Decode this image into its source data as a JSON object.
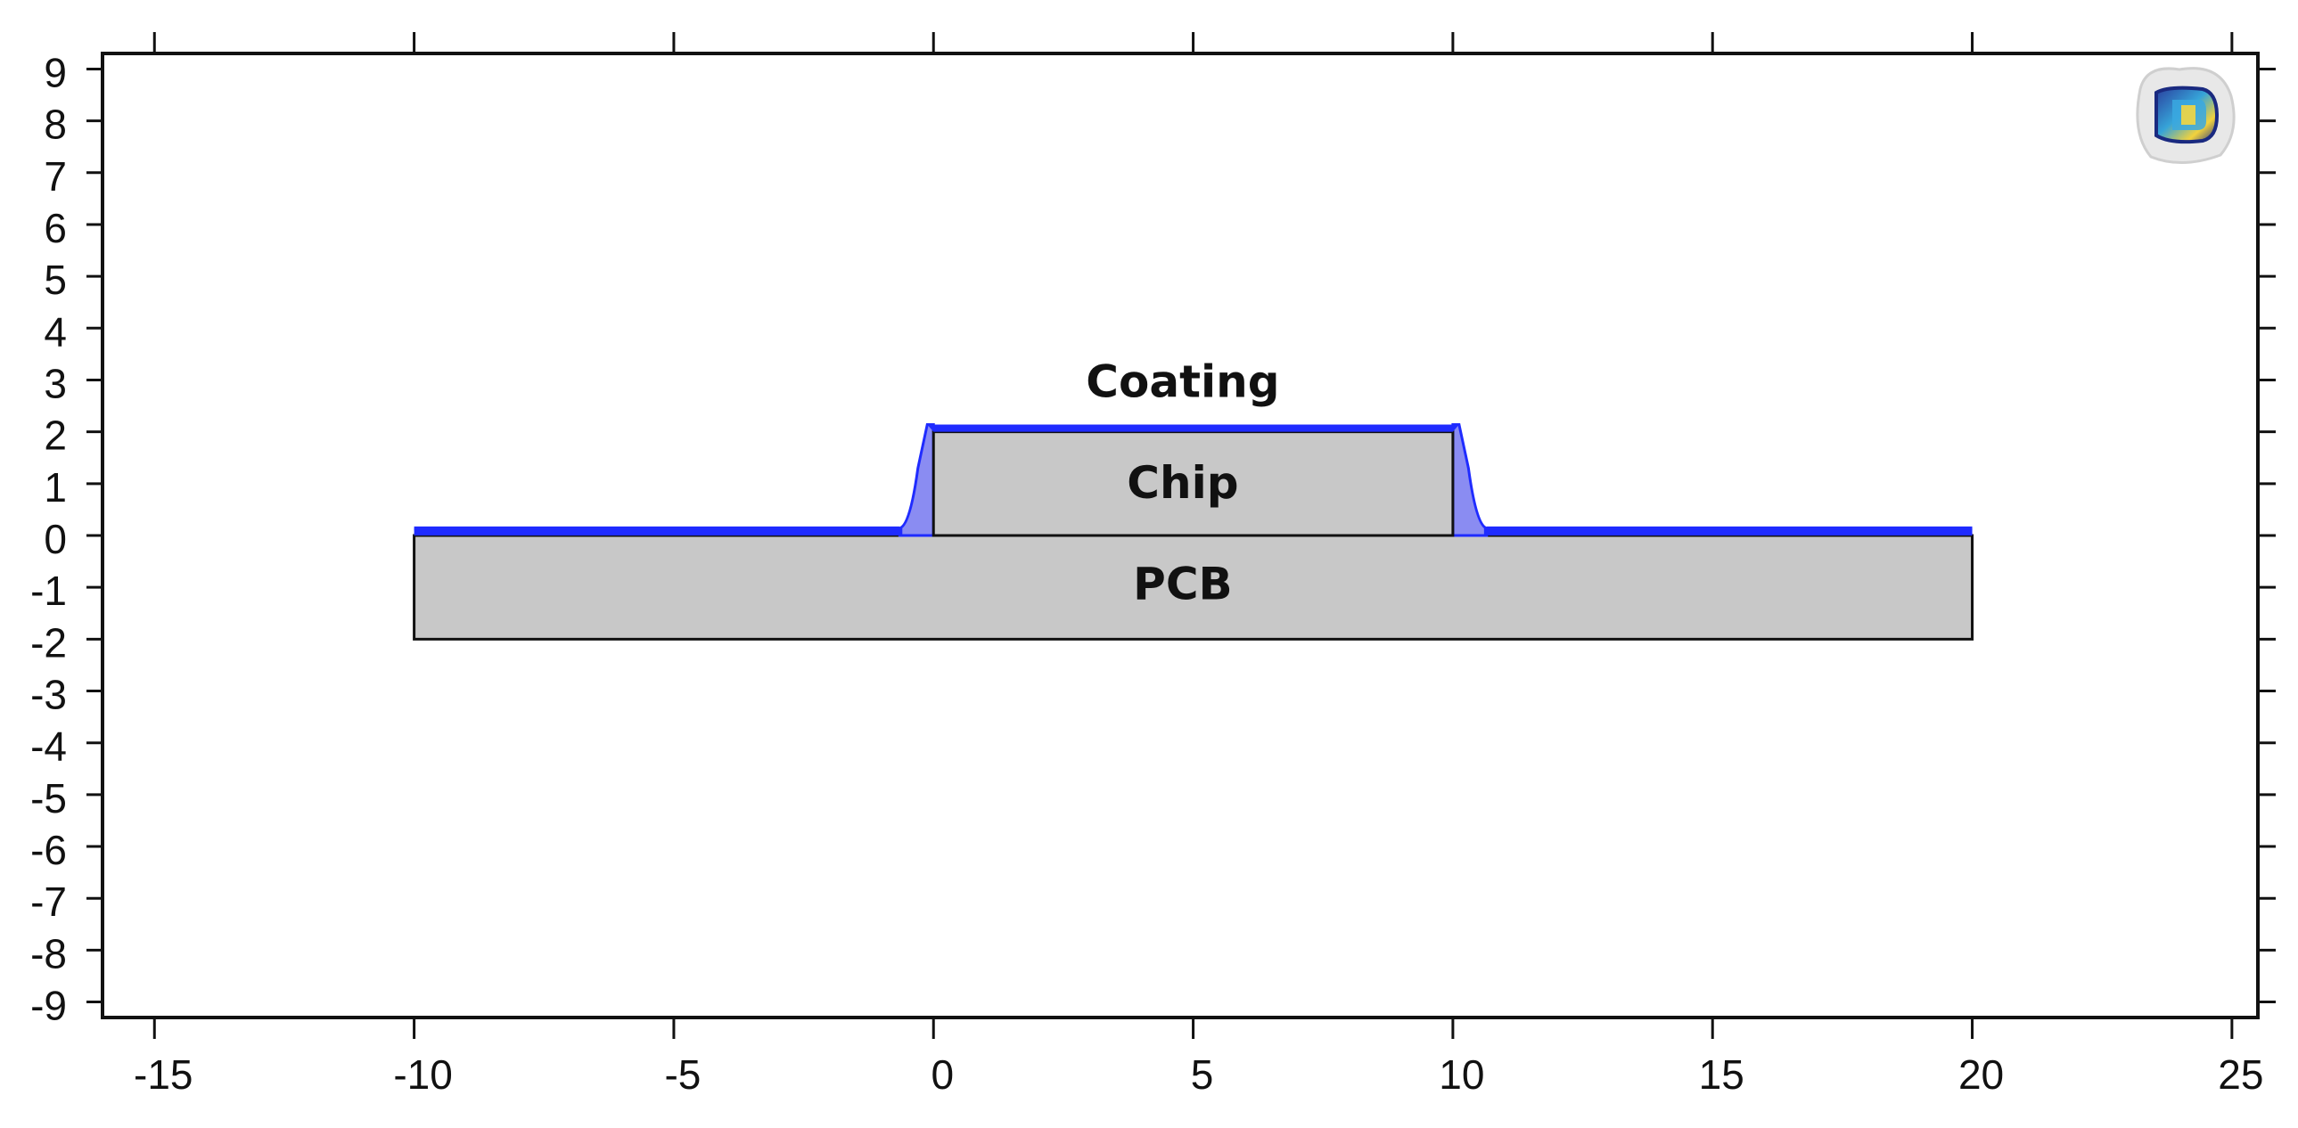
{
  "view": {
    "x_axis": {
      "range": [
        -16,
        25.5
      ],
      "ticks": [
        -15,
        -10,
        -5,
        0,
        5,
        10,
        15,
        20,
        25
      ],
      "tick_labels": [
        "-15",
        "-10",
        "-5",
        "0",
        "5",
        "10",
        "15",
        "20",
        "25"
      ]
    },
    "y_axis": {
      "range": [
        -9.3,
        9.3
      ],
      "ticks": [
        9,
        8,
        7,
        6,
        5,
        4,
        3,
        2,
        1,
        0,
        -1,
        -2,
        -3,
        -4,
        -5,
        -6,
        -7,
        -8,
        -9
      ],
      "tick_labels": [
        "9",
        "8",
        "7",
        "6",
        "5",
        "4",
        "3",
        "2",
        "1",
        "0",
        "-1",
        "-2",
        "-3",
        "-4",
        "-5",
        "-6",
        "-7",
        "-8",
        "-9"
      ]
    }
  },
  "regions": {
    "pcb": {
      "label": "PCB",
      "x": [
        -10,
        20
      ],
      "y": [
        -2,
        0
      ],
      "fill": "#c8c8c8"
    },
    "chip": {
      "label": "Chip",
      "x": [
        0,
        10
      ],
      "y": [
        0,
        2
      ],
      "fill": "#c8c8c8"
    },
    "coating": {
      "label": "Coating",
      "color": "#1f2bff",
      "fill": "#8a8cf2"
    }
  },
  "colors": {
    "outline": "#111111",
    "frame": "#111111",
    "background": "#ffffff"
  },
  "icons": {
    "corner_logo": "comsol-logo-icon"
  }
}
